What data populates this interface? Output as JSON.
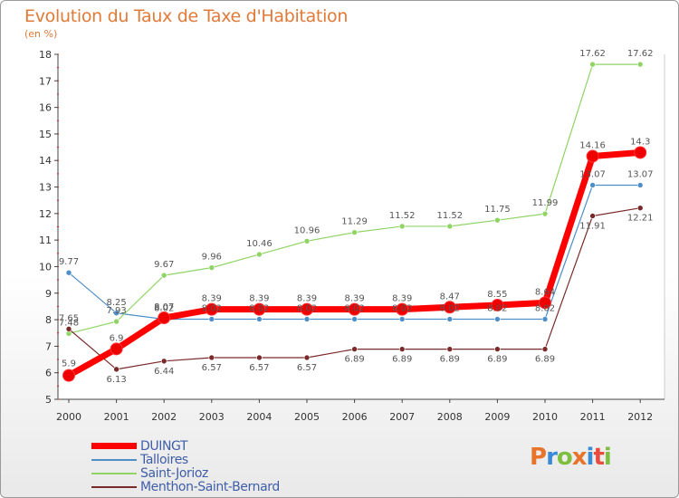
{
  "title": "Evolution du Taux de Taxe d'Habitation",
  "subtitle": "(en %)",
  "logo": {
    "text": "Proxiti",
    "colors": [
      "#e8742c",
      "#3a8ad6",
      "#7fbf3f",
      "#e8742c",
      "#3a8ad6",
      "#e84c3d",
      "#7fbf3f"
    ]
  },
  "chart_data": {
    "type": "line",
    "title": "Evolution du Taux de Taxe d'Habitation",
    "ylabel": "(en %)",
    "xlabel": "",
    "x": [
      "2000",
      "2001",
      "2002",
      "2003",
      "2004",
      "2005",
      "2006",
      "2007",
      "2008",
      "2009",
      "2010",
      "2011",
      "2012"
    ],
    "ylim": [
      5,
      18
    ],
    "yticks": [
      5,
      6,
      7,
      8,
      9,
      10,
      11,
      12,
      13,
      14,
      15,
      16,
      17,
      18
    ],
    "grid": false,
    "legend_position": "bottom-left",
    "series": [
      {
        "name": "DUINGT",
        "color": "#ff0000",
        "values": [
          5.9,
          6.9,
          8.07,
          8.39,
          8.39,
          8.39,
          8.39,
          8.39,
          8.47,
          8.55,
          8.64,
          14.16,
          14.3
        ],
        "labels": [
          "5.9",
          "6.9",
          "8.07",
          "8.39",
          "8.39",
          "8.39",
          "8.39",
          "8.39",
          "8.47",
          "8.55",
          "8.64",
          "14.16",
          "14.3"
        ]
      },
      {
        "name": "Talloires",
        "color": "#4f8fc8",
        "values": [
          9.77,
          8.25,
          8.02,
          8.02,
          8.02,
          8.02,
          8.02,
          8.02,
          8.02,
          8.02,
          8.02,
          13.07,
          13.07
        ],
        "labels": [
          "9.77",
          "8.25",
          "8.02",
          "8.02",
          "8.02",
          "8.02",
          "8.02",
          "8.02",
          "8.02",
          "8.02",
          "8.02",
          "13.07",
          "13.07"
        ]
      },
      {
        "name": "Saint-Jorioz",
        "color": "#8fd465",
        "values": [
          7.48,
          7.93,
          9.67,
          9.96,
          10.46,
          10.96,
          11.29,
          11.52,
          11.52,
          11.75,
          11.99,
          17.62,
          17.62
        ],
        "labels": [
          "7.48",
          "7.93",
          "9.67",
          "9.96",
          "10.46",
          "10.96",
          "11.29",
          "11.52",
          "11.52",
          "11.75",
          "11.99",
          "17.62",
          "17.62"
        ]
      },
      {
        "name": "Menthon-Saint-Bernard",
        "color": "#7a2a2a",
        "values": [
          7.65,
          6.13,
          6.44,
          6.57,
          6.57,
          6.57,
          6.89,
          6.89,
          6.89,
          6.89,
          6.89,
          11.91,
          12.21
        ],
        "labels": [
          "7.65",
          "6.13",
          "6.44",
          "6.57",
          "6.57",
          "6.57",
          "6.89",
          "6.89",
          "6.89",
          "6.89",
          "6.89",
          "11.91",
          "12.21"
        ]
      }
    ]
  }
}
